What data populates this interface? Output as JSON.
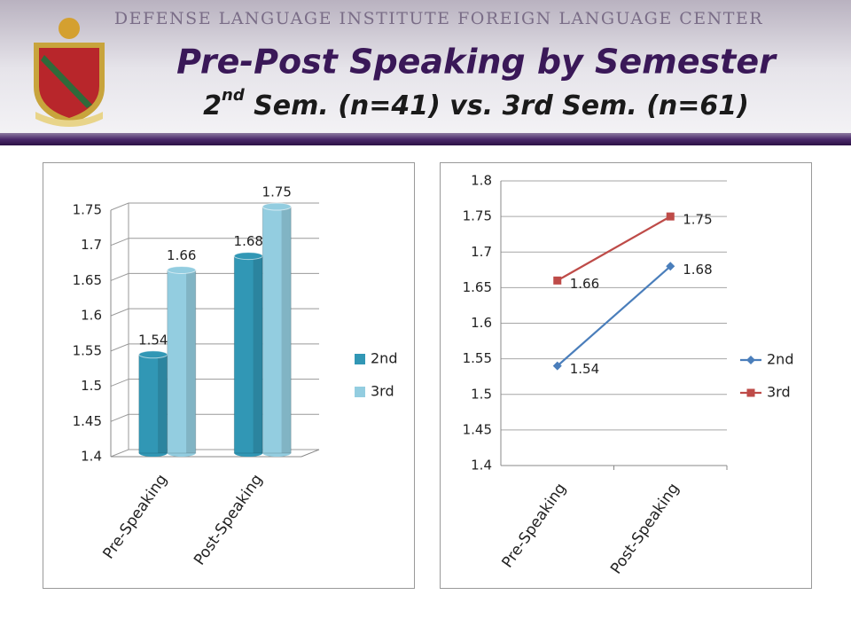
{
  "header": {
    "banner": "DEFENSE LANGUAGE INSTITUTE FOREIGN LANGUAGE CENTER",
    "title": "Pre-Post Speaking by Semester",
    "subtitle": [
      "2",
      "nd",
      " Sem. (n=41) vs. 3rd Sem. (n=61)"
    ]
  },
  "chart_data": [
    {
      "type": "bar",
      "categories": [
        "Pre-Speaking",
        "Post-Speaking"
      ],
      "series": [
        {
          "name": "2nd",
          "color": "#3197b5",
          "values": [
            1.54,
            1.68
          ]
        },
        {
          "name": "3rd",
          "color": "#93cde0",
          "values": [
            1.66,
            1.75
          ]
        }
      ],
      "ylim": [
        1.4,
        1.75
      ],
      "yticks": [
        1.4,
        1.45,
        1.5,
        1.55,
        1.6,
        1.65,
        1.7,
        1.75
      ],
      "grid": true,
      "legend": "right"
    },
    {
      "type": "line",
      "categories": [
        "Pre-Speaking",
        "Post-Speaking"
      ],
      "series": [
        {
          "name": "2nd",
          "color": "#4a7ebb",
          "marker": "diamond",
          "values": [
            1.54,
            1.68
          ]
        },
        {
          "name": "3rd",
          "color": "#be4b48",
          "marker": "square",
          "values": [
            1.66,
            1.75
          ]
        }
      ],
      "ylim": [
        1.4,
        1.8
      ],
      "yticks": [
        1.4,
        1.45,
        1.5,
        1.55,
        1.6,
        1.65,
        1.7,
        1.75,
        1.8
      ],
      "grid": true,
      "legend": "right"
    }
  ]
}
